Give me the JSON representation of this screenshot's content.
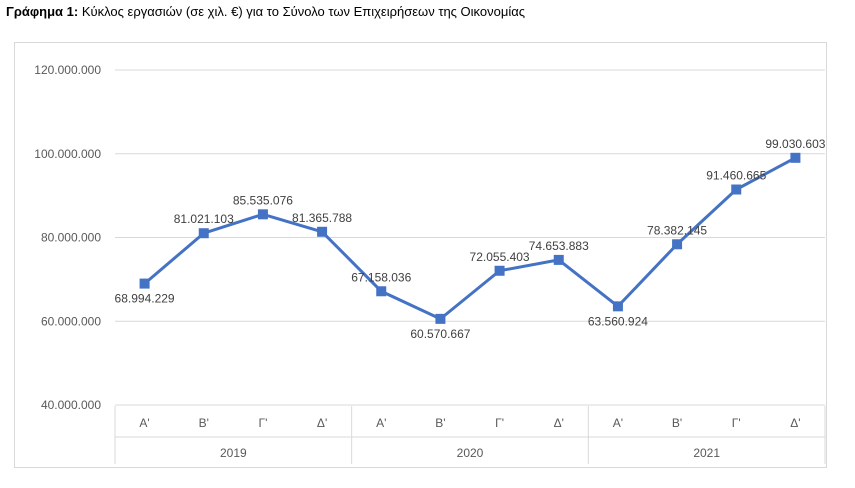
{
  "caption": {
    "prefix": "Γράφημα 1:",
    "text": "Κύκλος εργασιών (σε χιλ. €) για το Σύνολο των Επιχειρήσεων της Οικονομίας"
  },
  "chart_data": {
    "type": "line",
    "title": "",
    "xlabel": "",
    "ylabel": "",
    "ylim": [
      40000000,
      120000000
    ],
    "yticks": [
      40000000,
      60000000,
      80000000,
      100000000,
      120000000
    ],
    "ytick_labels": [
      "40.000.000",
      "60.000.000",
      "80.000.000",
      "100.000.000",
      "120.000.000"
    ],
    "grid": true,
    "legend": "none",
    "color": "#4472c4",
    "groups": [
      {
        "year": "2019",
        "quarters": [
          "Α'",
          "Β'",
          "Γ'",
          "Δ'"
        ]
      },
      {
        "year": "2020",
        "quarters": [
          "Α'",
          "Β'",
          "Γ'",
          "Δ'"
        ]
      },
      {
        "year": "2021",
        "quarters": [
          "Α'",
          "Β'",
          "Γ'",
          "Δ'"
        ]
      }
    ],
    "series": [
      {
        "values": [
          68994229,
          81021103,
          85535076,
          81365788,
          67158036,
          60570667,
          72055403,
          74653883,
          63560924,
          78382145,
          91460665,
          99030603
        ],
        "labels": [
          "68.994.229",
          "81.021.103",
          "85.535.076",
          "81.365.788",
          "67.158.036",
          "60.570.667",
          "72.055.403",
          "74.653.883",
          "63.560.924",
          "78.382.145",
          "91.460.665",
          "99.030.603"
        ]
      }
    ]
  }
}
